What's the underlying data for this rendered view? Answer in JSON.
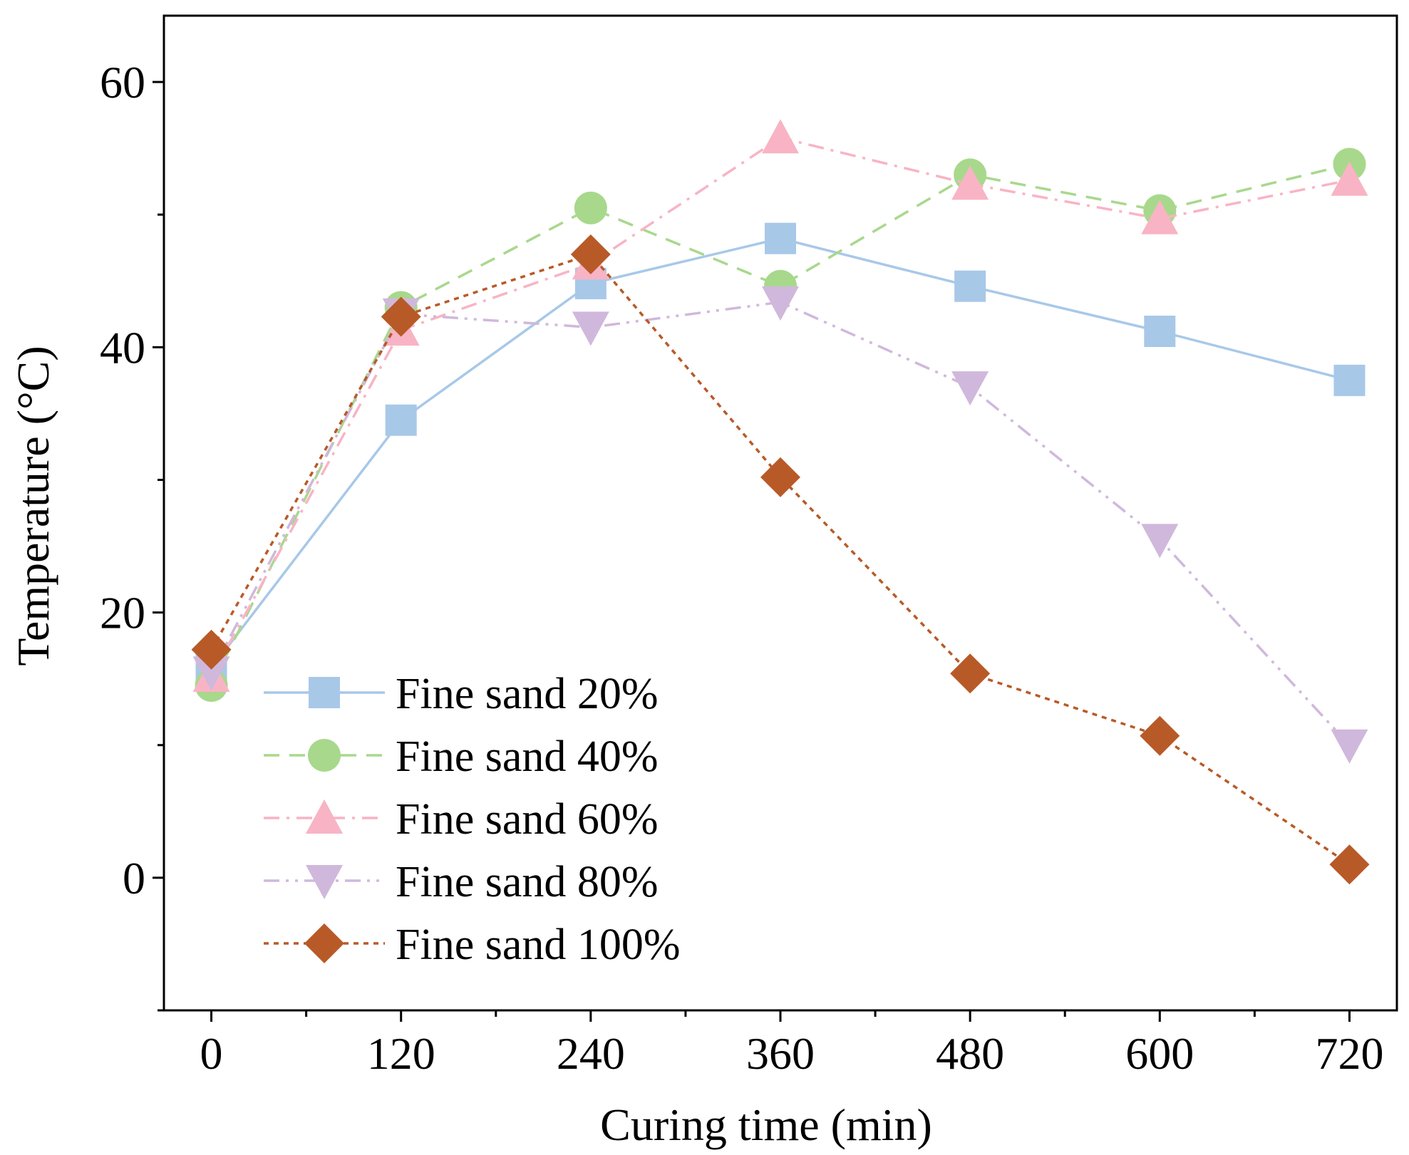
{
  "chart_data": {
    "type": "line",
    "title": "",
    "xlabel": "Curing time (min)",
    "ylabel": "Temperature (°C)",
    "x": [
      0,
      120,
      240,
      360,
      480,
      600,
      720
    ],
    "x_ticks": [
      "0",
      "120",
      "240",
      "360",
      "480",
      "600",
      "720"
    ],
    "y_ticks": [
      "0",
      "20",
      "40",
      "60"
    ],
    "xlim": [
      -30,
      750
    ],
    "ylim": [
      -10,
      65
    ],
    "grid": false,
    "legend_position": "bottom-left",
    "series": [
      {
        "name": "Fine sand 20%",
        "values": [
          15.8,
          34.5,
          44.8,
          48.2,
          44.6,
          41.2,
          37.5
        ],
        "color": "#a8c8e8",
        "marker": "square",
        "line_style": "solid"
      },
      {
        "name": "Fine sand 40%",
        "values": [
          14.5,
          43.0,
          50.5,
          44.6,
          53.0,
          50.3,
          53.8
        ],
        "color": "#a8d88c",
        "marker": "circle",
        "line_style": "dash"
      },
      {
        "name": "Fine sand 60%",
        "values": [
          15.2,
          41.3,
          46.3,
          55.8,
          52.3,
          49.7,
          52.6
        ],
        "color": "#f8b4c4",
        "marker": "triangle-up",
        "line_style": "dash-dot"
      },
      {
        "name": "Fine sand 80%",
        "values": [
          15.5,
          42.5,
          41.5,
          43.4,
          37.0,
          25.5,
          10.0
        ],
        "color": "#d0b8dc",
        "marker": "triangle-down",
        "line_style": "dash-dot-dot"
      },
      {
        "name": "Fine sand 100%",
        "values": [
          17.2,
          42.3,
          47.0,
          30.2,
          15.4,
          10.7,
          1.0
        ],
        "color": "#b85a28",
        "marker": "diamond",
        "line_style": "dot"
      }
    ]
  }
}
